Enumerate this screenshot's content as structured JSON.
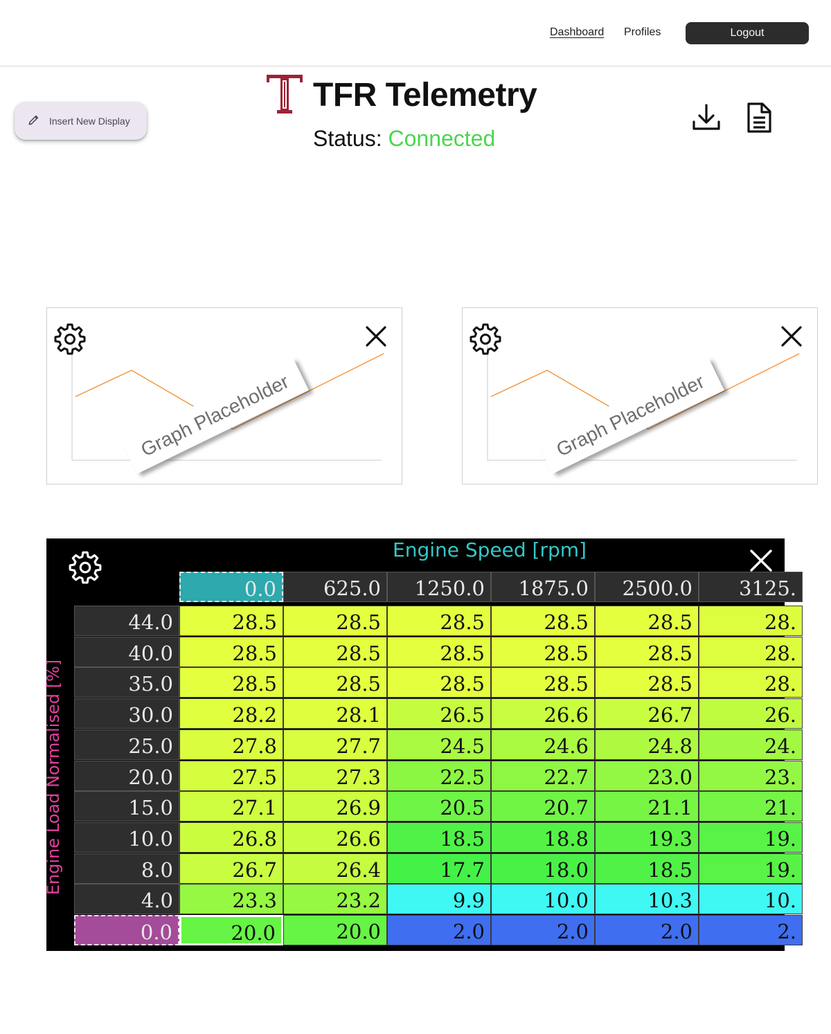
{
  "nav": {
    "links": [
      "Dashboard",
      "Profiles"
    ],
    "logout_label": "Logout"
  },
  "header": {
    "insert_label": "Insert New Display",
    "app_title": "TFR Telemetry",
    "status_label": "Status:",
    "status_value": "Connected"
  },
  "colors": {
    "brand": "#9d2235",
    "connected": "#4cd64c",
    "graph_line": "#f0923a"
  },
  "icons": [
    "pencil-icon",
    "download-icon",
    "document-icon",
    "gear-icon",
    "close-icon"
  ],
  "graphs": [
    {
      "placeholder_label": "Graph Placeholder"
    },
    {
      "placeholder_label": "Graph Placeholder"
    }
  ],
  "table": {
    "x_title": "Engine Speed [rpm]",
    "y_title": "Engine Load Normalised [%]",
    "columns": [
      "0.0",
      "625.0",
      "1250.0",
      "1875.0",
      "2500.0",
      "3125."
    ],
    "rows": [
      {
        "label": "44.0",
        "values": [
          "28.5",
          "28.5",
          "28.5",
          "28.5",
          "28.5",
          "28."
        ]
      },
      {
        "label": "40.0",
        "values": [
          "28.5",
          "28.5",
          "28.5",
          "28.5",
          "28.5",
          "28."
        ]
      },
      {
        "label": "35.0",
        "values": [
          "28.5",
          "28.5",
          "28.5",
          "28.5",
          "28.5",
          "28."
        ]
      },
      {
        "label": "30.0",
        "values": [
          "28.2",
          "28.1",
          "26.5",
          "26.6",
          "26.7",
          "26."
        ]
      },
      {
        "label": "25.0",
        "values": [
          "27.8",
          "27.7",
          "24.5",
          "24.6",
          "24.8",
          "24."
        ]
      },
      {
        "label": "20.0",
        "values": [
          "27.5",
          "27.3",
          "22.5",
          "22.7",
          "23.0",
          "23."
        ]
      },
      {
        "label": "15.0",
        "values": [
          "27.1",
          "26.9",
          "20.5",
          "20.7",
          "21.1",
          "21."
        ]
      },
      {
        "label": "10.0",
        "values": [
          "26.8",
          "26.6",
          "18.5",
          "18.8",
          "19.3",
          "19."
        ]
      },
      {
        "label": "8.0",
        "values": [
          "26.7",
          "26.4",
          "17.7",
          "18.0",
          "18.5",
          "19."
        ]
      },
      {
        "label": "4.0",
        "values": [
          "23.3",
          "23.2",
          "9.9",
          "10.0",
          "10.3",
          "10."
        ]
      },
      {
        "label": "0.0",
        "values": [
          "20.0",
          "20.0",
          "2.0",
          "2.0",
          "2.0",
          "2."
        ]
      }
    ],
    "selected_column": 0,
    "selected_row": 10
  }
}
